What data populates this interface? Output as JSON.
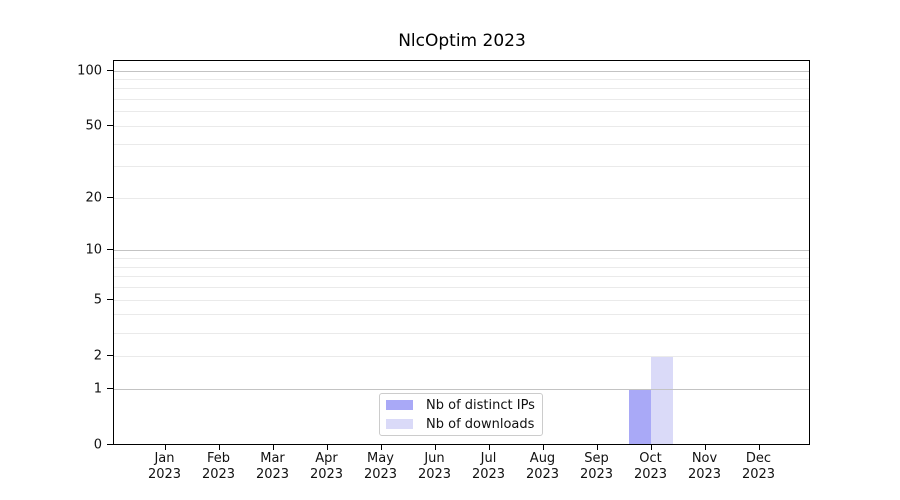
{
  "title": "NlcOptim 2023",
  "legend": {
    "items": [
      {
        "label": "Nb of distinct IPs",
        "color": "#a9a9f7"
      },
      {
        "label": "Nb of downloads",
        "color": "#dadaf8"
      }
    ]
  },
  "chart_data": {
    "type": "bar",
    "title": "NlcOptim 2023",
    "categories": [
      "Jan",
      "Feb",
      "Mar",
      "Apr",
      "May",
      "Jun",
      "Jul",
      "Aug",
      "Sep",
      "Oct",
      "Nov",
      "Dec"
    ],
    "year_label": "2023",
    "series": [
      {
        "name": "Nb of distinct IPs",
        "color": "#a9a9f7",
        "values": [
          0,
          0,
          0,
          0,
          0,
          0,
          0,
          0,
          0,
          1,
          0,
          0
        ]
      },
      {
        "name": "Nb of downloads",
        "color": "#dadaf8",
        "values": [
          0,
          0,
          0,
          0,
          0,
          0,
          0,
          0,
          0,
          2,
          0,
          0
        ]
      }
    ],
    "yscale": "log1p",
    "ylim": [
      0,
      114
    ],
    "y_major_ticks": [
      0,
      1,
      2,
      5,
      10,
      20,
      50,
      100
    ],
    "y_decade_gridlines": [
      1,
      10,
      100
    ],
    "y_minor_gridlines": [
      2,
      3,
      4,
      5,
      6,
      7,
      8,
      9,
      20,
      30,
      40,
      50,
      60,
      70,
      80,
      90
    ],
    "grid": true,
    "legend_position": "lower center"
  },
  "colors": {
    "grid_major": "#c3c3c3",
    "grid_minor": "#eaeaea",
    "axis": "#000000",
    "text": "#111111",
    "legend_border": "#cccccc",
    "background": "#ffffff"
  }
}
